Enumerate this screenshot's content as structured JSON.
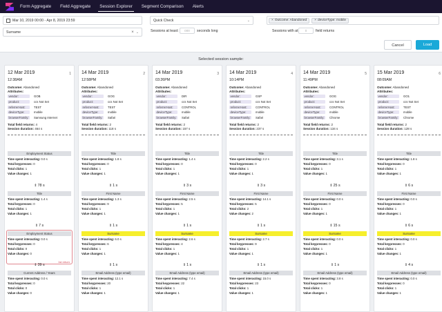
{
  "nav": {
    "items": [
      "Form Aggregate",
      "Field Aggregate",
      "Session Explorer",
      "Segment Comparison",
      "Alerts"
    ],
    "active": 2
  },
  "filters": {
    "date_range": "Mar 10, 2019 00:00 - Apr 8, 2019 23:59",
    "field_value": "Surname",
    "quick_check": "Quick Check",
    "tags": [
      "Outcome: Abandoned",
      "deviceType: mobile"
    ],
    "sessions_at_least_label": "Sessions at least:",
    "seconds_long_label": "seconds long",
    "seconds_placeholder": "000",
    "sessions_with_label": "Sessions with at least:",
    "field_returns_label": "field returns",
    "returns_placeholder": "0",
    "cancel_label": "Cancel",
    "load_label": "Load"
  },
  "sample_title": "Selected session sample:",
  "card_labels": {
    "outcome": "Outcome:",
    "attributes": "Attributes:",
    "total_returns": "Total field returns:",
    "session_duration": "Session duration:",
    "time_interacting": "Time spent interacting:",
    "keypresses": "Total keypresses:",
    "clicks": "Total clicks:",
    "value_changes": "Value changes:"
  },
  "attr_keys": [
    "vendor:",
    "product:",
    "referrerHost:",
    "deviceType:",
    "browserFamily:"
  ],
  "cards": [
    {
      "number": "1",
      "date": "12 Mar 2019",
      "time": "12:38AM",
      "outcome": "Abandoned",
      "attrs": [
        "GOB",
        "ccs Not Set",
        "TEST",
        "mobile",
        "Samsung Internet"
      ],
      "total_returns": "4",
      "duration": "464 s",
      "fields": [
        {
          "title": "Employment Status",
          "time": "0.0 s",
          "keys": "0",
          "clicks": "1",
          "changes": "1"
        },
        {
          "title": "Title",
          "time": "1.4 s",
          "keys": "0",
          "clicks": "1",
          "changes": "1"
        },
        {
          "title": "Employment Status",
          "time": "0.0 s",
          "keys": "0",
          "clicks": "0",
          "changes": "0",
          "error": "1st return"
        },
        {
          "title": "Current Address / Years",
          "time": "0.0 s",
          "keys": "0",
          "clicks": "0",
          "changes": "0"
        }
      ],
      "gaps": [
        "78 s",
        "7 s",
        "39 s"
      ]
    },
    {
      "number": "2",
      "date": "14 Mar 2019",
      "time": "12:58PM",
      "outcome": "Abandoned",
      "attrs": [
        "GOG",
        "ccs Not Set",
        "TEST",
        "mobile",
        "Safari"
      ],
      "total_returns": "2",
      "duration": "118 s",
      "fields": [
        {
          "title": "Title",
          "time": "1.8 s",
          "keys": "0",
          "clicks": "1",
          "changes": "1"
        },
        {
          "title": "First Name",
          "time": "1.3 s",
          "keys": "9",
          "clicks": "1",
          "changes": "1"
        },
        {
          "title": "Surname",
          "time": "6.0 s",
          "keys": "6",
          "clicks": "1",
          "changes": "1"
        },
        {
          "title": "Email Address (type email)",
          "time": "12.1 s",
          "keys": "20",
          "clicks": "1",
          "changes": "1"
        }
      ],
      "gaps": [
        "1 s",
        "1 s",
        "1 s"
      ]
    },
    {
      "number": "3",
      "date": "14 Mar 2019",
      "time": "03:26PM",
      "outcome": "Abandoned",
      "attrs": [
        "DIR",
        "ccs Not Set",
        "CONTROL",
        "mobile",
        "Safari"
      ],
      "total_returns": "2",
      "duration": "157 s",
      "fields": [
        {
          "title": "Title",
          "time": "1.4 s",
          "keys": "0",
          "clicks": "1",
          "changes": "1"
        },
        {
          "title": "First Name",
          "time": "2.5 s",
          "keys": "5",
          "clicks": "1",
          "changes": "1"
        },
        {
          "title": "Surname",
          "time": "2.6 s",
          "keys": "4",
          "clicks": "1",
          "changes": "1"
        },
        {
          "title": "Email Address (type email)",
          "time": "7.4 s",
          "keys": "22",
          "clicks": "1",
          "changes": "1"
        }
      ],
      "gaps": [
        "3 s",
        "1 s",
        "1 s"
      ]
    },
    {
      "number": "4",
      "date": "14 Mar 2019",
      "time": "10:14PM",
      "outcome": "Abandoned",
      "attrs": [
        "GSP",
        "ccs Not Set",
        "CONTROL",
        "mobile",
        "Safari"
      ],
      "total_returns": "2",
      "duration": "237 s",
      "fields": [
        {
          "title": "Title",
          "time": "2.2 s",
          "keys": "0",
          "clicks": "1",
          "changes": "1"
        },
        {
          "title": "First Name",
          "time": "14.1 s",
          "keys": "5",
          "clicks": "2",
          "changes": "2"
        },
        {
          "title": "Surname",
          "time": "2.7 s",
          "keys": "9",
          "clicks": "1",
          "changes": "1"
        },
        {
          "title": "Email Address (type email)",
          "time": "15.0 s",
          "keys": "23",
          "clicks": "1",
          "changes": "1"
        }
      ],
      "gaps": [
        "3 s",
        "1 s",
        "1 s"
      ]
    },
    {
      "number": "5",
      "date": "14 Mar 2019",
      "time": "11:49PM",
      "outcome": "Abandoned",
      "attrs": [
        "GOG",
        "ccs Not Set",
        "CONTROL",
        "mobile",
        "Chrome"
      ],
      "total_returns": "2",
      "duration": "134 s",
      "fields": [
        {
          "title": "Title",
          "time": "3.1 s",
          "keys": "0",
          "clicks": "1",
          "changes": "1"
        },
        {
          "title": "First Name",
          "time": "0.0 s",
          "keys": "0",
          "clicks": "1",
          "changes": "1"
        },
        {
          "title": "Surname",
          "time": "0.0 s",
          "keys": "0",
          "clicks": "1",
          "changes": "1"
        },
        {
          "title": "Email Address (type email)",
          "time": "3.8 s",
          "keys": "0",
          "clicks": "1",
          "changes": "1"
        }
      ],
      "gaps": [
        "25 s",
        "15 s",
        "1 s"
      ]
    },
    {
      "number": "6",
      "date": "15 Mar 2019",
      "time": "08:09AM",
      "outcome": "Abandoned",
      "attrs": [
        "GO1",
        "ccs Not Set",
        "TEST",
        "mobile",
        "Chrome"
      ],
      "total_returns": "2",
      "duration": "128 s",
      "fields": [
        {
          "title": "Title",
          "time": "1.8 s",
          "keys": "0",
          "clicks": "1",
          "changes": "1"
        },
        {
          "title": "First Name",
          "time": "0.0 s",
          "keys": "0",
          "clicks": "1",
          "changes": "1"
        },
        {
          "title": "Surname",
          "time": "0.0 s",
          "keys": "0",
          "clicks": "1",
          "changes": "1"
        },
        {
          "title": "Email Address (type email)",
          "time": "0.0 s",
          "keys": "0",
          "clicks": "1",
          "changes": "1"
        }
      ],
      "gaps": [
        "6 s",
        "6 s",
        "4 s"
      ]
    }
  ]
}
